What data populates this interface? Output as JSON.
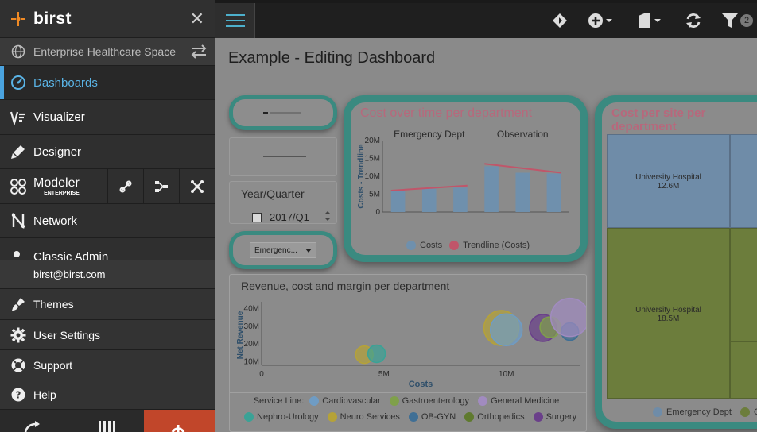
{
  "app": {
    "logo": "birst"
  },
  "sidebar": {
    "space_name": "Enterprise Healthcare Space",
    "items": [
      {
        "label": "Dashboards",
        "icon": "dashboard-icon"
      },
      {
        "label": "Visualizer",
        "icon": "visualizer-icon"
      },
      {
        "label": "Designer",
        "icon": "designer-icon"
      },
      {
        "label": "Modeler",
        "sublabel": "ENTERPRISE",
        "icon": "modeler-icon"
      },
      {
        "label": "Network",
        "icon": "network-icon"
      },
      {
        "label": "Classic Admin",
        "icon": "admin-icon"
      }
    ],
    "user_email": "birst@birst.com",
    "user_items": [
      {
        "label": "Themes",
        "icon": "brush-icon"
      },
      {
        "label": "User Settings",
        "icon": "gear-icon"
      },
      {
        "label": "Support",
        "icon": "lifebuoy-icon"
      },
      {
        "label": "Help",
        "icon": "help-icon"
      }
    ]
  },
  "topbar": {
    "filter_count": "2"
  },
  "page": {
    "title": "Example - Editing Dashboard"
  },
  "filters": {
    "year_quarter_label": "Year/Quarter",
    "year_quarter_value": "2017/Q1",
    "department_value": "Emergenc..."
  },
  "colors": {
    "teal_frame": "#3a8a80",
    "pink_title": "#b7687c",
    "accent_blue": "#4aa3df",
    "logout_red": "#c1462a"
  },
  "chart_data": [
    {
      "type": "bar",
      "title": "Cost over time per department",
      "facets": [
        "Emergency Dept",
        "Observation"
      ],
      "ylabel": "Costs - Trendline",
      "yticks": [
        "0",
        "5M",
        "10M",
        "15M",
        "20M"
      ],
      "ylim": [
        0,
        20000000
      ],
      "series": [
        {
          "name": "Costs",
          "facet_values": [
            [
              6000000,
              6500000,
              6800000
            ],
            [
              12800000,
              11000000,
              10800000
            ]
          ]
        },
        {
          "name": "Trendline (Costs)",
          "facet_values": [
            [
              6000000,
              6700000,
              7400000
            ],
            [
              13500000,
              12200000,
              11000000
            ]
          ]
        }
      ],
      "legend": [
        "Costs",
        "Trendline (Costs)"
      ],
      "legend_colors": [
        "#6f90ad",
        "#c0566a"
      ]
    },
    {
      "type": "scatter",
      "title": "Revenue, cost and margin per department",
      "xlabel": "Costs",
      "ylabel": "Net Revenue",
      "xticks": [
        "0",
        "5M",
        "10M"
      ],
      "yticks": [
        "10M",
        "20M",
        "30M",
        "40M"
      ],
      "xlim": [
        0,
        13000000
      ],
      "ylim": [
        8000000,
        42000000
      ],
      "legend_title": "Service Line:",
      "legend": [
        {
          "name": "Cardiovascular",
          "color": "#6f9cc4"
        },
        {
          "name": "Gastroenterology",
          "color": "#7fa04a"
        },
        {
          "name": "General Medicine",
          "color": "#a18bc0"
        },
        {
          "name": "Nephro-Urology",
          "color": "#3aa296"
        },
        {
          "name": "Neuro Services",
          "color": "#b5a238"
        },
        {
          "name": "OB-GYN",
          "color": "#3f6f95"
        },
        {
          "name": "Orthopedics",
          "color": "#5f7a2e"
        },
        {
          "name": "Surgery",
          "color": "#6a3f8a"
        }
      ],
      "points": [
        {
          "x": 4200000,
          "y": 14000000,
          "r": 11,
          "color": "#b5a238"
        },
        {
          "x": 4700000,
          "y": 14500000,
          "r": 11,
          "color": "#3aa296"
        },
        {
          "x": 9800000,
          "y": 29000000,
          "r": 22,
          "color": "#b5a238"
        },
        {
          "x": 10000000,
          "y": 28000000,
          "r": 20,
          "color": "#6f9cc4"
        },
        {
          "x": 11500000,
          "y": 29000000,
          "r": 17,
          "color": "#6a3f8a"
        },
        {
          "x": 11800000,
          "y": 29500000,
          "r": 13,
          "color": "#7fa04a"
        },
        {
          "x": 12600000,
          "y": 27000000,
          "r": 11,
          "color": "#3f6f95"
        },
        {
          "x": 12600000,
          "y": 35000000,
          "r": 24,
          "color": "#a18bc0"
        }
      ]
    },
    {
      "type": "treemap",
      "title": "Cost per site per department",
      "cells": [
        {
          "label": "University Hospital",
          "value": "12.6M",
          "color": "#6f8ca8"
        },
        {
          "label": "University Hospital",
          "value": "18.5M",
          "color": "#6c7d3c"
        }
      ],
      "legend": [
        {
          "name": "Emergency Dept",
          "color": "#6f8ca8"
        },
        {
          "name": "O",
          "color": "#6c7d3c"
        }
      ]
    }
  ]
}
